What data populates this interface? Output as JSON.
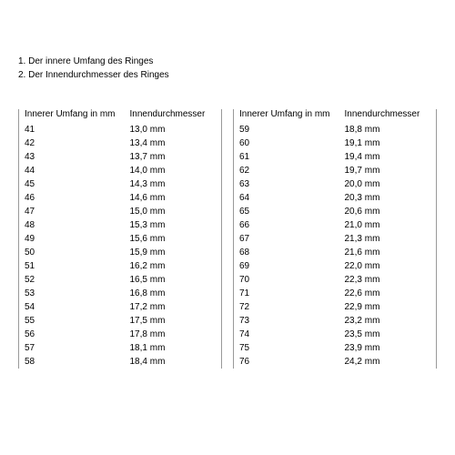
{
  "intro": {
    "line1": "1. Der innere Umfang des Ringes",
    "line2": "2. Der Innendurchmesser des Ringes"
  },
  "headers": {
    "umfang": "Innerer Umfang in mm",
    "durchmesser": "Innendurchmesser"
  },
  "table1": {
    "columns": [
      "Innerer Umfang in mm",
      "Innendurchmesser"
    ],
    "rows": [
      [
        "41",
        "13,0 mm"
      ],
      [
        "42",
        "13,4 mm"
      ],
      [
        "43",
        "13,7 mm"
      ],
      [
        "44",
        "14,0 mm"
      ],
      [
        "45",
        "14,3 mm"
      ],
      [
        "46",
        "14,6 mm"
      ],
      [
        "47",
        "15,0 mm"
      ],
      [
        "48",
        "15,3 mm"
      ],
      [
        "49",
        "15,6 mm"
      ],
      [
        "50",
        "15,9 mm"
      ],
      [
        "51",
        "16,2 mm"
      ],
      [
        "52",
        "16,5 mm"
      ],
      [
        "53",
        "16,8 mm"
      ],
      [
        "54",
        "17,2 mm"
      ],
      [
        "55",
        "17,5 mm"
      ],
      [
        "56",
        "17,8 mm"
      ],
      [
        "57",
        "18,1 mm"
      ],
      [
        "58",
        "18,4 mm"
      ]
    ]
  },
  "table2": {
    "columns": [
      "Innerer Umfang in mm",
      "Innendurchmesser"
    ],
    "rows": [
      [
        "59",
        "18,8 mm"
      ],
      [
        "60",
        "19,1 mm"
      ],
      [
        "61",
        "19,4 mm"
      ],
      [
        "62",
        "19,7 mm"
      ],
      [
        "63",
        "20,0 mm"
      ],
      [
        "64",
        "20,3 mm"
      ],
      [
        "65",
        "20,6 mm"
      ],
      [
        "66",
        "21,0 mm"
      ],
      [
        "67",
        "21,3 mm"
      ],
      [
        "68",
        "21,6 mm"
      ],
      [
        "69",
        "22,0 mm"
      ],
      [
        "70",
        "22,3 mm"
      ],
      [
        "71",
        "22,6 mm"
      ],
      [
        "72",
        "22,9 mm"
      ],
      [
        "73",
        "23,2 mm"
      ],
      [
        "74",
        "23,5 mm"
      ],
      [
        "75",
        "23,9 mm"
      ],
      [
        "76",
        "24,2 mm"
      ]
    ]
  },
  "style": {
    "background_color": "#ffffff",
    "text_color": "#000000",
    "border_color": "#999999",
    "font_size": 10,
    "font_family": "Arial, sans-serif"
  }
}
